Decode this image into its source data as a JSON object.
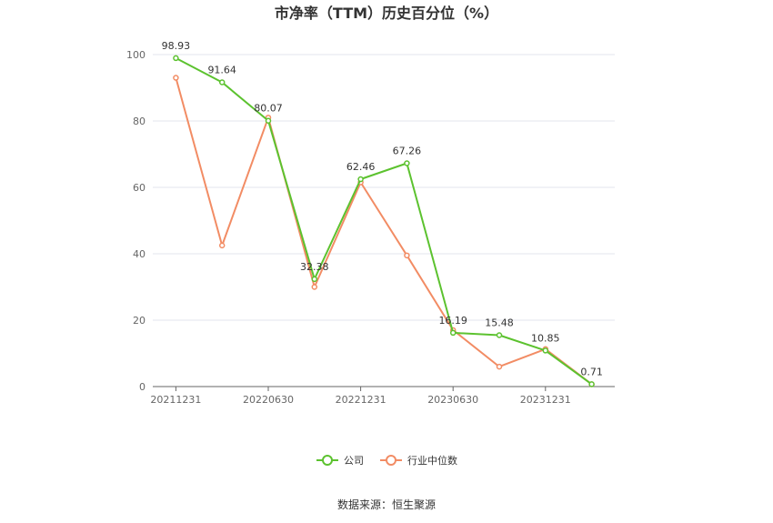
{
  "chart_data": {
    "type": "line",
    "title": "市净率（TTM）历史百分位（%）",
    "xlabel": "",
    "ylabel": "",
    "ylim": [
      0,
      100
    ],
    "yticks": [
      0,
      20,
      40,
      60,
      80,
      100
    ],
    "x": [
      "20211231",
      "20220331",
      "20220630",
      "20220930",
      "20221231",
      "20230331",
      "20230630",
      "20230930",
      "20231231",
      "20240331"
    ],
    "xtick_labels": [
      "20211231",
      "20220630",
      "20221231",
      "20230630",
      "20231231"
    ],
    "grid": "horizontal",
    "legend_position": "bottom-center",
    "series": [
      {
        "name": "公司",
        "color": "#5cc22f",
        "values": [
          98.93,
          91.64,
          80.07,
          32.38,
          62.46,
          67.26,
          16.19,
          15.48,
          10.85,
          0.71
        ],
        "labels": [
          "98.93",
          "91.64",
          "80.07",
          "32.38",
          "62.46",
          "67.26",
          "16.19",
          "15.48",
          "10.85",
          "0.71"
        ]
      },
      {
        "name": "行业中位数",
        "color": "#f28c64",
        "values": [
          93.0,
          42.5,
          81.0,
          30.0,
          61.5,
          39.5,
          17.0,
          6.0,
          11.3,
          0.7
        ]
      }
    ]
  },
  "source_text": "数据来源：恒生聚源"
}
